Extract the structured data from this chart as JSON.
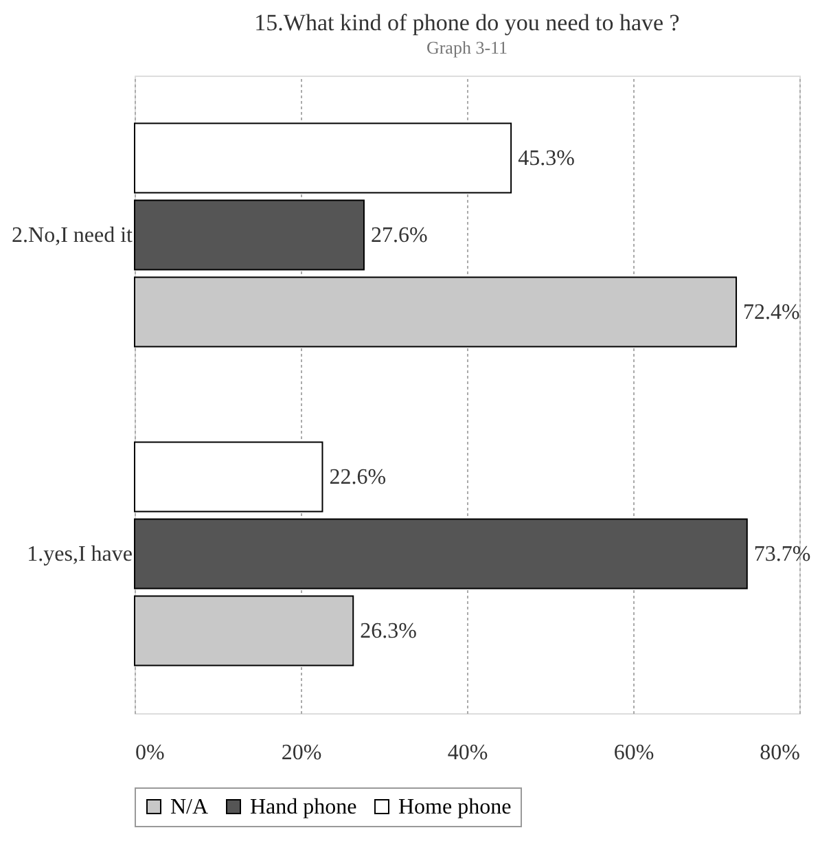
{
  "chart_data": {
    "type": "bar",
    "orientation": "horizontal",
    "title": "15.What kind of phone do you need to have ?",
    "annotations": [
      "Graph 3-11"
    ],
    "categories": [
      "2.No,I need it",
      "1.yes,I have"
    ],
    "series": [
      {
        "name": "N/A",
        "color": "#c8c8c8",
        "values": [
          72.4,
          26.3
        ]
      },
      {
        "name": "Hand phone",
        "color": "#555555",
        "values": [
          27.6,
          73.7
        ]
      },
      {
        "name": "Home phone",
        "color": "#ffffff",
        "values": [
          45.3,
          22.6
        ]
      }
    ],
    "value_labels": [
      [
        "72.4%",
        "26.3%"
      ],
      [
        "27.6%",
        "73.7%"
      ],
      [
        "45.3%",
        "22.6%"
      ]
    ],
    "xlim": [
      0,
      80
    ],
    "xticks": [
      {
        "value": 0,
        "label": "0%"
      },
      {
        "value": 20,
        "label": "20%"
      },
      {
        "value": 40,
        "label": "40%"
      },
      {
        "value": 60,
        "label": "60%"
      },
      {
        "value": 80,
        "label": "80%"
      }
    ],
    "grid": "x",
    "legend": "bottom"
  }
}
